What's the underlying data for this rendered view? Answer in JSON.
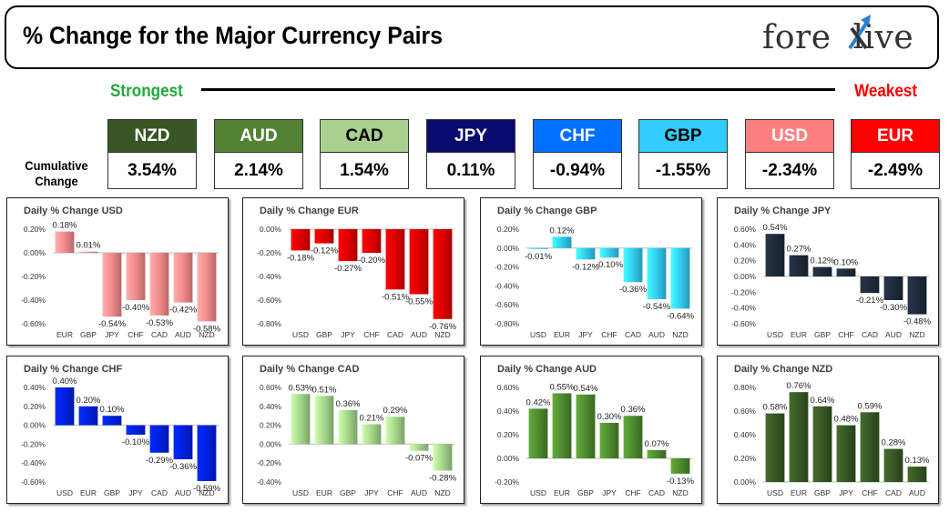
{
  "header": {
    "title": "% Change for the Major Currency Pairs",
    "logo_left": "fore",
    "logo_right": "live"
  },
  "scale": {
    "strongest": "Strongest",
    "weakest": "Weakest"
  },
  "cumulative_label": [
    "Cumulative",
    "Change"
  ],
  "currencies": [
    {
      "code": "NZD",
      "value": "3.54%",
      "bg": "#375623",
      "fg": "#ffffff"
    },
    {
      "code": "AUD",
      "value": "2.14%",
      "bg": "#548235",
      "fg": "#ffffff"
    },
    {
      "code": "CAD",
      "value": "1.54%",
      "bg": "#a9d08e",
      "fg": "#000000"
    },
    {
      "code": "JPY",
      "value": "0.11%",
      "bg": "#0a0a6e",
      "fg": "#ffffff"
    },
    {
      "code": "CHF",
      "value": "-0.94%",
      "bg": "#0070ff",
      "fg": "#ffffff"
    },
    {
      "code": "GBP",
      "value": "-1.55%",
      "bg": "#33ccff",
      "fg": "#000000"
    },
    {
      "code": "USD",
      "value": "-2.34%",
      "bg": "#ff8080",
      "fg": "#ffffff"
    },
    {
      "code": "EUR",
      "value": "-2.49%",
      "bg": "#ff0000",
      "fg": "#ffffff"
    }
  ],
  "chart_data": [
    {
      "type": "bar",
      "title": "Daily % Change USD",
      "categories": [
        "EUR",
        "GBP",
        "JPY",
        "CHF",
        "CAD",
        "AUD",
        "NZD"
      ],
      "values": [
        0.18,
        0.01,
        -0.54,
        -0.4,
        -0.53,
        -0.42,
        -0.58
      ],
      "labels": [
        "0.18%",
        "0.01%",
        "-0.54%",
        "-0.40%",
        "-0.53%",
        "-0.42%",
        "-0.58%"
      ],
      "ylim": [
        -0.6,
        0.2
      ],
      "ticks": [
        0.2,
        0,
        -0.2,
        -0.4,
        -0.6
      ],
      "tick_labels": [
        "0.20%",
        "0.00%",
        "-0.20%",
        "-0.40%",
        "-0.60%"
      ],
      "color": "#f28b8b"
    },
    {
      "type": "bar",
      "title": "Daily % Change EUR",
      "categories": [
        "USD",
        "GBP",
        "JPY",
        "CHF",
        "CAD",
        "AUD",
        "NZD"
      ],
      "values": [
        -0.18,
        -0.12,
        -0.27,
        -0.2,
        -0.51,
        -0.55,
        -0.76
      ],
      "labels": [
        "-0.18%",
        "-0.12%",
        "-0.27%",
        "-0.20%",
        "-0.51%",
        "-0.55%",
        "-0.76%"
      ],
      "ylim": [
        -0.8,
        0
      ],
      "ticks": [
        0,
        -0.2,
        -0.4,
        -0.6,
        -0.8
      ],
      "tick_labels": [
        "0.00%",
        "-0.20%",
        "-0.40%",
        "-0.60%",
        "-0.80%"
      ],
      "color": "#e00000"
    },
    {
      "type": "bar",
      "title": "Daily % Change GBP",
      "categories": [
        "USD",
        "EUR",
        "JPY",
        "CHF",
        "CAD",
        "AUD",
        "NZD"
      ],
      "values": [
        -0.01,
        0.12,
        -0.12,
        -0.1,
        -0.36,
        -0.54,
        -0.64
      ],
      "labels": [
        "-0.01%",
        "0.12%",
        "-0.12%",
        "-0.10%",
        "-0.36%",
        "-0.54%",
        "-0.64%"
      ],
      "ylim": [
        -0.8,
        0.2
      ],
      "ticks": [
        0.2,
        0,
        -0.2,
        -0.4,
        -0.6,
        -0.8
      ],
      "tick_labels": [
        "0.20%",
        "0.00%",
        "-0.20%",
        "-0.40%",
        "-0.60%",
        "-0.80%"
      ],
      "color": "#33ccf0"
    },
    {
      "type": "bar",
      "title": "Daily % Change JPY",
      "categories": [
        "USD",
        "EUR",
        "GBP",
        "CHF",
        "CAD",
        "AUD",
        "NZD"
      ],
      "values": [
        0.54,
        0.27,
        0.12,
        0.1,
        -0.21,
        -0.3,
        -0.48
      ],
      "labels": [
        "0.54%",
        "0.27%",
        "0.12%",
        "0.10%",
        "-0.21%",
        "-0.30%",
        "-0.48%"
      ],
      "ylim": [
        -0.6,
        0.6
      ],
      "ticks": [
        0.6,
        0.4,
        0.2,
        0,
        -0.2,
        -0.4,
        -0.6
      ],
      "tick_labels": [
        "0.60%",
        "0.40%",
        "0.20%",
        "0.00%",
        "-0.20%",
        "-0.40%",
        "-0.60%"
      ],
      "color": "#1f2a3a"
    },
    {
      "type": "bar",
      "title": "Daily % Change CHF",
      "categories": [
        "USD",
        "EUR",
        "GBP",
        "JPY",
        "CAD",
        "AUD",
        "NZD"
      ],
      "values": [
        0.4,
        0.2,
        0.1,
        -0.1,
        -0.29,
        -0.36,
        -0.59
      ],
      "labels": [
        "0.40%",
        "0.20%",
        "0.10%",
        "-0.10%",
        "-0.29%",
        "-0.36%",
        "-0.59%"
      ],
      "ylim": [
        -0.6,
        0.4
      ],
      "ticks": [
        0.4,
        0.2,
        0,
        -0.2,
        -0.4,
        -0.6
      ],
      "tick_labels": [
        "0.40%",
        "0.20%",
        "0.00%",
        "-0.20%",
        "-0.40%",
        "-0.60%"
      ],
      "color": "#0020e0"
    },
    {
      "type": "bar",
      "title": "Daily % Change CAD",
      "categories": [
        "USD",
        "EUR",
        "GBP",
        "JPY",
        "CHF",
        "AUD",
        "NZD"
      ],
      "values": [
        0.53,
        0.51,
        0.36,
        0.21,
        0.29,
        -0.07,
        -0.28
      ],
      "labels": [
        "0.53%",
        "0.51%",
        "0.36%",
        "0.21%",
        "0.29%",
        "-0.07%",
        "-0.28%"
      ],
      "ylim": [
        -0.4,
        0.6
      ],
      "ticks": [
        0.6,
        0.4,
        0.2,
        0,
        -0.2,
        -0.4
      ],
      "tick_labels": [
        "0.60%",
        "0.40%",
        "0.20%",
        "0.00%",
        "-0.20%",
        "-0.40%"
      ],
      "color": "#a4d68a"
    },
    {
      "type": "bar",
      "title": "Daily % Change AUD",
      "categories": [
        "USD",
        "EUR",
        "GBP",
        "JPY",
        "CHF",
        "CAD",
        "NZD"
      ],
      "values": [
        0.42,
        0.55,
        0.54,
        0.3,
        0.36,
        0.07,
        -0.13
      ],
      "labels": [
        "0.42%",
        "0.55%",
        "0.54%",
        "0.30%",
        "0.36%",
        "0.07%",
        "-0.13%"
      ],
      "ylim": [
        -0.2,
        0.6
      ],
      "ticks": [
        0.6,
        0.4,
        0.2,
        0,
        -0.2
      ],
      "tick_labels": [
        "0.60%",
        "0.40%",
        "0.20%",
        "0.00%",
        "-0.20%"
      ],
      "color": "#4e8a2e"
    },
    {
      "type": "bar",
      "title": "Daily % Change NZD",
      "categories": [
        "USD",
        "EUR",
        "GBP",
        "JPY",
        "CHF",
        "CAD",
        "AUD"
      ],
      "values": [
        0.58,
        0.76,
        0.64,
        0.48,
        0.59,
        0.28,
        0.13
      ],
      "labels": [
        "0.58%",
        "0.76%",
        "0.64%",
        "0.48%",
        "0.59%",
        "0.28%",
        "0.13%"
      ],
      "ylim": [
        0,
        0.8
      ],
      "ticks": [
        0.8,
        0.6,
        0.4,
        0.2,
        0
      ],
      "tick_labels": [
        "0.80%",
        "0.60%",
        "0.40%",
        "0.20%",
        "0.00%"
      ],
      "color": "#375623"
    }
  ]
}
